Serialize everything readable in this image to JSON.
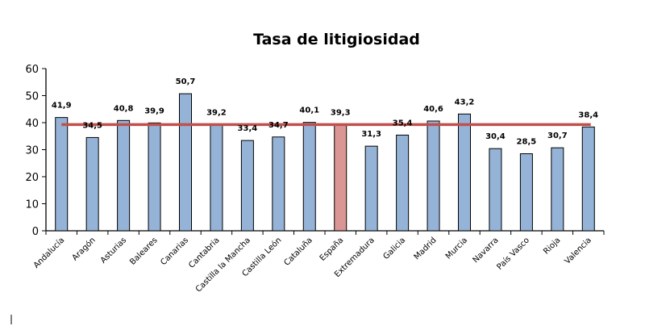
{
  "chart_data": {
    "type": "bar",
    "title": "Tasa de litigiosidad",
    "xlabel": "",
    "ylabel": "",
    "ylim": [
      0,
      60
    ],
    "yticks": [
      0,
      10,
      20,
      30,
      40,
      50,
      60
    ],
    "categories": [
      "Andalucía",
      "Aragón",
      "Asturias",
      "Baleares",
      "Canarias",
      "Cantabria",
      "Castilla la Mancha",
      "Castilla León",
      "Cataluña",
      "España",
      "Extremadura",
      "Galicia",
      "Madrid",
      "Murcia",
      "Navarra",
      "País Vasco",
      "Rioja",
      "Valencia"
    ],
    "values": [
      41.9,
      34.5,
      40.8,
      39.9,
      50.7,
      39.2,
      33.4,
      34.7,
      40.1,
      39.3,
      31.3,
      35.4,
      40.6,
      43.2,
      30.4,
      28.5,
      30.7,
      38.4
    ],
    "data_labels": [
      "41,9",
      "34,5",
      "40,8",
      "39,9",
      "50,7",
      "39,2",
      "33,4",
      "34,7",
      "40,1",
      "39,3",
      "31,3",
      "35,4",
      "40,6",
      "43,2",
      "30,4",
      "28,5",
      "30,7",
      "38,4"
    ],
    "highlight_category": "España",
    "reference_line": {
      "value": 39.3,
      "label": "España"
    },
    "colors": {
      "bar": "#95b3d7",
      "highlight": "#d99694",
      "line": "#c0504d",
      "outline": "#000000"
    },
    "grid": false,
    "legend": "none"
  }
}
